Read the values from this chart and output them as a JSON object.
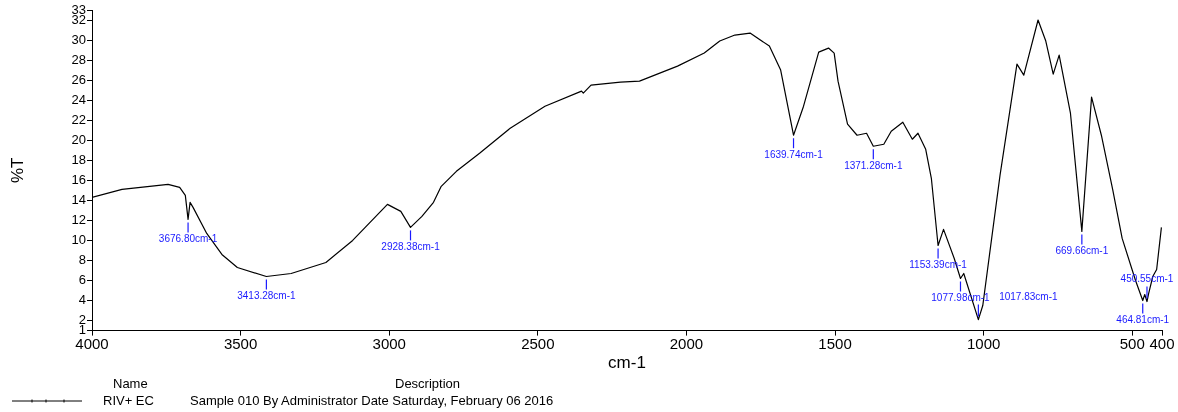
{
  "chart_data": {
    "type": "line",
    "xlabel": "cm-1",
    "ylabel": "%T",
    "x": [
      4000,
      3899,
      3744,
      3705,
      3686,
      3676.8,
      3670,
      3660,
      3614,
      3563,
      3511,
      3413.28,
      3330,
      3213,
      3123,
      3006,
      2961,
      2928.38,
      2890,
      2851,
      2825,
      2774,
      2696,
      2593,
      2476,
      2353,
      2347,
      2321,
      2222,
      2158,
      2030,
      1940,
      1888,
      1837,
      1786,
      1721,
      1683,
      1639.74,
      1606,
      1555,
      1522,
      1503,
      1490,
      1458,
      1426,
      1394,
      1371.28,
      1336,
      1311,
      1272,
      1240,
      1221,
      1195,
      1176,
      1153.39,
      1135,
      1099,
      1077.98,
      1067,
      1017.83,
      1003,
      945,
      888,
      865,
      817,
      791,
      766,
      746,
      708,
      669.66,
      637,
      604,
      566,
      534,
      489,
      464.81,
      458,
      450.55,
      445,
      431,
      418,
      402
    ],
    "series": [
      {
        "name": "RIV+ EC",
        "color": "#000000",
        "values": [
          14.3,
          15.1,
          15.6,
          15.3,
          14.5,
          12.1,
          13.8,
          13.3,
          10.7,
          8.6,
          7.3,
          6.4,
          6.7,
          7.8,
          10.0,
          13.6,
          12.9,
          11.3,
          12.4,
          13.8,
          15.4,
          16.9,
          18.7,
          21.2,
          23.4,
          24.9,
          24.7,
          25.5,
          25.8,
          25.9,
          27.4,
          28.7,
          29.9,
          30.5,
          30.7,
          29.4,
          27.0,
          20.5,
          23.4,
          28.8,
          29.2,
          28.7,
          25.9,
          21.6,
          20.5,
          20.7,
          19.4,
          19.6,
          20.9,
          21.8,
          20.1,
          20.7,
          19.1,
          16.2,
          9.5,
          11.1,
          8.2,
          6.2,
          6.7,
          2.1,
          3.5,
          16.5,
          27.6,
          26.5,
          32.0,
          29.9,
          26.6,
          28.5,
          22.7,
          10.9,
          24.3,
          20.5,
          15.1,
          10.2,
          6.0,
          4.0,
          4.6,
          3.9,
          4.7,
          6.4,
          7.1,
          11.3
        ]
      }
    ],
    "xlim": [
      4000,
      400
    ],
    "xticks": [
      4000,
      3500,
      3000,
      2500,
      2000,
      1500,
      1000,
      500,
      400
    ],
    "ylim": [
      1,
      33
    ],
    "yticks": [
      1,
      2,
      4,
      6,
      8,
      10,
      12,
      14,
      16,
      18,
      20,
      22,
      24,
      26,
      28,
      30,
      32,
      33
    ],
    "grid": false,
    "legend": "bottom",
    "marker": "none",
    "line_style": "solid",
    "annotations": [
      {
        "text": "3676.80cm-1",
        "x": 3676.8,
        "y": 12.1
      },
      {
        "text": "3413.28cm-1",
        "x": 3413.28,
        "y": 6.4
      },
      {
        "text": "2928.38cm-1",
        "x": 2928.38,
        "y": 11.3
      },
      {
        "text": "1639.74cm-1",
        "x": 1639.74,
        "y": 20.5
      },
      {
        "text": "1371.28cm-1",
        "x": 1371.28,
        "y": 19.4
      },
      {
        "text": "1153.39cm-1",
        "x": 1153.39,
        "y": 9.5
      },
      {
        "text": "1077.98cm-1",
        "x": 1077.98,
        "y": 6.2
      },
      {
        "text": "1017.83cm-1",
        "x": 1017.83,
        "y": 2.1
      },
      {
        "text": "669.66cm-1",
        "x": 669.66,
        "y": 10.9
      },
      {
        "text": "464.81cm-1",
        "x": 464.81,
        "y": 4.0
      },
      {
        "text": "450.55cm-1",
        "x": 450.55,
        "y": 3.9
      },
      "Name",
      "Description",
      "Sample 010 By Administrator Date Saturday, February 06 2016"
    ]
  }
}
